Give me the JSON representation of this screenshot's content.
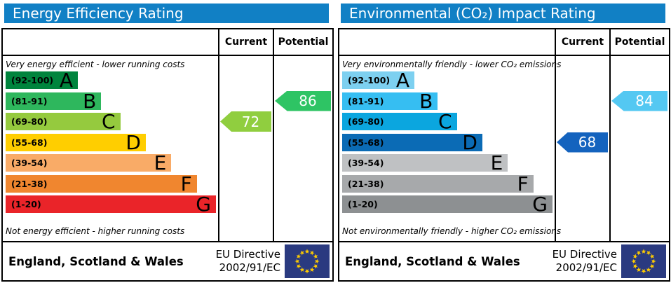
{
  "chart_data": [
    {
      "type": "bar",
      "orientation": "horizontal",
      "title": "Energy Efficiency Rating",
      "categories": [
        "A",
        "B",
        "C",
        "D",
        "E",
        "F",
        "G"
      ],
      "category_ranges": [
        "92-100",
        "81-91",
        "69-80",
        "55-68",
        "39-54",
        "21-38",
        "1-20"
      ],
      "bar_length_pct": [
        34,
        45,
        54,
        66,
        78,
        90,
        99
      ],
      "bar_colors": [
        "#00843D",
        "#2EB75D",
        "#95CA3E",
        "#FFCE00",
        "#F9AB67",
        "#F0862F",
        "#EA2429"
      ],
      "annotations": {
        "current": 72,
        "current_band": "C",
        "potential": 86,
        "potential_band": "B"
      },
      "top_label": "Very energy efficient - lower running costs",
      "bottom_label": "Not energy efficient - higher running costs",
      "footer": "England, Scotland & Wales — EU Directive 2002/91/EC"
    },
    {
      "type": "bar",
      "orientation": "horizontal",
      "title": "Environmental (CO₂) Impact Rating",
      "categories": [
        "A",
        "B",
        "C",
        "D",
        "E",
        "F",
        "G"
      ],
      "category_ranges": [
        "92-100",
        "81-91",
        "69-80",
        "55-68",
        "39-54",
        "21-38",
        "1-20"
      ],
      "bar_length_pct": [
        34,
        45,
        54,
        66,
        78,
        90,
        99
      ],
      "bar_colors": [
        "#7DD0F0",
        "#36BEF2",
        "#0BA6DF",
        "#0B6BB5",
        "#BFC1C3",
        "#A7A9AB",
        "#8D9092"
      ],
      "annotations": {
        "current": 68,
        "current_band": "D",
        "potential": 84,
        "potential_band": "B"
      },
      "top_label": "Very environmentally friendly - lower CO₂ emissions",
      "bottom_label": "Not environmentally friendly - higher CO₂ emissions",
      "footer": "England, Scotland & Wales — EU Directive 2002/91/EC"
    }
  ],
  "panels": [
    {
      "title": "Energy Efficiency Rating",
      "header_bg": "#1180C5",
      "columns": {
        "current": "Current",
        "potential": "Potential"
      },
      "top_caption": "Very energy efficient - lower running costs",
      "bottom_caption": "Not energy efficient - higher running costs",
      "bands": [
        {
          "range": "(92-100)",
          "letter": "A",
          "color": "#00843D",
          "width_pct": 34
        },
        {
          "range": "(81-91)",
          "letter": "B",
          "color": "#2EB75D",
          "width_pct": 45
        },
        {
          "range": "(69-80)",
          "letter": "C",
          "color": "#95CA3E",
          "width_pct": 54
        },
        {
          "range": "(55-68)",
          "letter": "D",
          "color": "#FFCE00",
          "width_pct": 66
        },
        {
          "range": "(39-54)",
          "letter": "E",
          "color": "#F9AB67",
          "width_pct": 78
        },
        {
          "range": "(21-38)",
          "letter": "F",
          "color": "#F0862F",
          "width_pct": 90
        },
        {
          "range": "(1-20)",
          "letter": "G",
          "color": "#EA2429",
          "width_pct": 99
        }
      ],
      "current": {
        "value": "72",
        "band_index": 2,
        "color": "#90CE3F"
      },
      "potential": {
        "value": "86",
        "band_index": 1,
        "color": "#2EC464"
      },
      "footer": {
        "region": "England, Scotland & Wales",
        "directive_line1": "EU Directive",
        "directive_line2": "2002/91/EC",
        "flag_bg": "#2A3A80",
        "flag_star": "#FFCC00"
      }
    },
    {
      "title": "Environmental (CO₂) Impact Rating",
      "header_bg": "#1180C5",
      "columns": {
        "current": "Current",
        "potential": "Potential"
      },
      "top_caption": "Very environmentally friendly - lower CO₂ emissions",
      "bottom_caption": "Not environmentally friendly - higher CO₂ emissions",
      "bands": [
        {
          "range": "(92-100)",
          "letter": "A",
          "color": "#7DD0F0",
          "width_pct": 34
        },
        {
          "range": "(81-91)",
          "letter": "B",
          "color": "#36BEF2",
          "width_pct": 45
        },
        {
          "range": "(69-80)",
          "letter": "C",
          "color": "#0BA6DF",
          "width_pct": 54
        },
        {
          "range": "(55-68)",
          "letter": "D",
          "color": "#0B6BB5",
          "width_pct": 66
        },
        {
          "range": "(39-54)",
          "letter": "E",
          "color": "#BFC1C3",
          "width_pct": 78
        },
        {
          "range": "(21-38)",
          "letter": "F",
          "color": "#A7A9AB",
          "width_pct": 90
        },
        {
          "range": "(1-20)",
          "letter": "G",
          "color": "#8D9092",
          "width_pct": 99
        }
      ],
      "current": {
        "value": "68",
        "band_index": 3,
        "color": "#1463BE"
      },
      "potential": {
        "value": "84",
        "band_index": 1,
        "color": "#54C8F2"
      },
      "footer": {
        "region": "England, Scotland & Wales",
        "directive_line1": "EU Directive",
        "directive_line2": "2002/91/EC",
        "flag_bg": "#2A3A80",
        "flag_star": "#FFCC00"
      }
    }
  ]
}
